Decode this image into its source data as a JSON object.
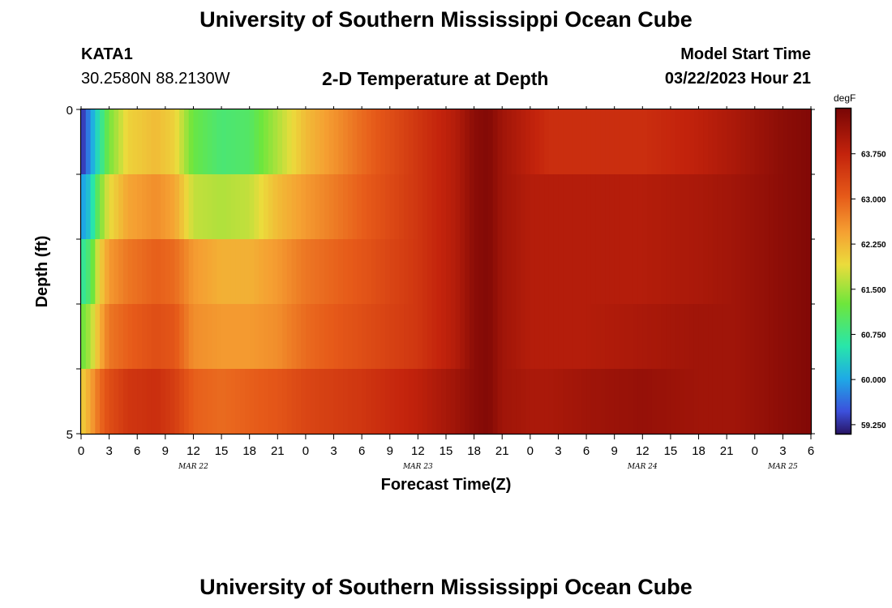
{
  "header": {
    "title": "University of Southern Mississippi Ocean Cube",
    "station_id": "KATA1",
    "coordinates": "30.2580N  88.2130W",
    "subtitle": "2-D Temperature at Depth",
    "model_start_label": "Model Start Time",
    "model_start_value": "03/22/2023 Hour 21"
  },
  "footer": {
    "title": "University of Southern Mississippi Ocean Cube"
  },
  "chart_data": {
    "type": "heatmap",
    "xlabel": "Forecast Time(Z)",
    "ylabel": "Depth (ft)",
    "x_ticks": [
      "0",
      "3",
      "6",
      "9",
      "12",
      "15",
      "18",
      "21",
      "0",
      "3",
      "6",
      "9",
      "12",
      "15",
      "18",
      "21",
      "0",
      "3",
      "6",
      "9",
      "12",
      "15",
      "18",
      "21",
      "0",
      "3",
      "6"
    ],
    "day_labels": [
      {
        "text": "MAR 22",
        "hour": 12
      },
      {
        "text": "MAR 23",
        "hour": 36
      },
      {
        "text": "MAR 24",
        "hour": 60
      },
      {
        "text": "MAR 25",
        "hour": 75
      }
    ],
    "y_ticks": [
      "0",
      "5"
    ],
    "xlim": [
      0,
      78
    ],
    "ylim": [
      0,
      5
    ],
    "colorbar": {
      "unit": "degF",
      "tick_labels": [
        "63.750",
        "63.000",
        "62.250",
        "61.500",
        "60.750",
        "60.000",
        "59.250"
      ],
      "tick_values": [
        63.75,
        63.0,
        62.25,
        61.5,
        60.75,
        60.0,
        59.25
      ],
      "range": [
        59.1,
        64.5
      ]
    },
    "depth_layers_ft": [
      0.5,
      1.5,
      2.5,
      3.5,
      4.5
    ],
    "time_keyframes_hours": [
      0,
      1,
      2,
      3,
      5,
      8,
      10,
      12,
      15,
      18,
      21,
      24,
      30,
      36,
      40,
      42,
      43.5,
      45,
      48,
      50,
      54,
      60,
      66,
      70,
      75,
      78
    ],
    "temperature_degF_rows": [
      [
        59.2,
        59.9,
        60.6,
        61.3,
        62.0,
        62.2,
        62.0,
        61.2,
        60.9,
        61.0,
        61.6,
        62.2,
        62.9,
        63.5,
        63.9,
        64.3,
        64.4,
        64.1,
        63.8,
        63.6,
        63.6,
        63.6,
        63.8,
        64.0,
        64.3,
        64.4
      ],
      [
        59.9,
        60.3,
        61.3,
        61.9,
        62.4,
        62.6,
        62.4,
        61.7,
        61.6,
        61.7,
        62.2,
        62.5,
        63.0,
        63.5,
        63.9,
        64.3,
        64.4,
        64.1,
        63.9,
        63.9,
        63.9,
        63.9,
        64.0,
        64.1,
        64.3,
        64.4
      ],
      [
        60.6,
        61.0,
        62.0,
        62.5,
        62.8,
        63.0,
        62.9,
        62.5,
        62.3,
        62.3,
        62.5,
        62.8,
        63.1,
        63.5,
        63.9,
        64.3,
        64.4,
        64.1,
        63.9,
        63.9,
        63.9,
        63.9,
        64.0,
        64.1,
        64.3,
        64.4
      ],
      [
        61.2,
        61.6,
        62.3,
        62.8,
        63.0,
        63.2,
        63.1,
        62.6,
        62.5,
        62.5,
        62.6,
        62.9,
        63.2,
        63.5,
        63.9,
        64.3,
        64.4,
        64.1,
        63.9,
        63.9,
        63.9,
        64.0,
        64.1,
        64.1,
        64.3,
        64.4
      ],
      [
        62.0,
        62.4,
        62.9,
        63.2,
        63.5,
        63.6,
        63.4,
        63.0,
        62.9,
        63.0,
        63.1,
        63.3,
        63.5,
        63.8,
        64.1,
        64.3,
        64.4,
        64.1,
        64.0,
        64.0,
        64.1,
        64.2,
        64.1,
        64.1,
        64.3,
        64.4
      ]
    ]
  }
}
